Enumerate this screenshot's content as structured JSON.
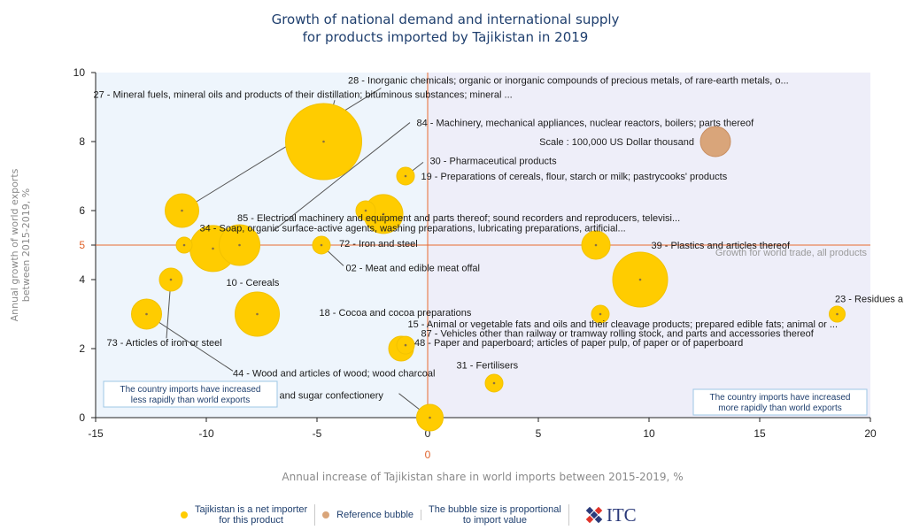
{
  "chart_data": {
    "type": "scatter",
    "title": [
      "Growth of national demand and international supply",
      "for products imported by Tajikistan in 2019"
    ],
    "xlabel": "Annual increase of Tajikistan share in world imports between 2015-2019, %",
    "ylabel": "Annual growth of world exports between 2015-2019, %",
    "xlim": [
      -15,
      20
    ],
    "ylim": [
      0,
      10
    ],
    "xticks": [
      "-15",
      "-10",
      "-5",
      "0",
      "5",
      "10",
      "15",
      "20"
    ],
    "yticks": [
      "0",
      "2",
      "4",
      "5",
      "6",
      "8",
      "10"
    ],
    "x_reference": 0,
    "x_reference_label": "0",
    "y_reference": 5,
    "y_reference_label": "5",
    "world_growth_label": "Growth for world trade, all products",
    "scale_label": "Scale : 100,000 US Dollar thousand",
    "reference_bubble": {
      "x": 13,
      "y": 8,
      "r": 17,
      "color": "#d9a57a"
    },
    "net_importer_color": "#ffcc00",
    "quadrant_left_text": [
      "The country imports have increased",
      "less rapidly than world exports"
    ],
    "quadrant_right_text": [
      "The country imports have increased",
      "more rapidly than world exports"
    ],
    "bubbles": [
      {
        "x": -4.7,
        "y": 8.0,
        "r": 43
      },
      {
        "x": -11.1,
        "y": 6.0,
        "r": 19
      },
      {
        "x": -1.0,
        "y": 7.0,
        "r": 10
      },
      {
        "x": -2.8,
        "y": 6.0,
        "r": 11
      },
      {
        "x": -2.0,
        "y": 5.9,
        "r": 22
      },
      {
        "x": -11.0,
        "y": 5.0,
        "r": 9
      },
      {
        "x": -9.7,
        "y": 4.9,
        "r": 26
      },
      {
        "x": -8.5,
        "y": 5.0,
        "r": 23
      },
      {
        "x": -4.8,
        "y": 5.0,
        "r": 10
      },
      {
        "x": 7.6,
        "y": 5.0,
        "r": 16
      },
      {
        "x": -11.6,
        "y": 4.0,
        "r": 13
      },
      {
        "x": 9.6,
        "y": 4.0,
        "r": 31
      },
      {
        "x": -7.7,
        "y": 3.0,
        "r": 25
      },
      {
        "x": -12.7,
        "y": 3.0,
        "r": 17
      },
      {
        "x": 7.8,
        "y": 3.0,
        "r": 10
      },
      {
        "x": 18.5,
        "y": 3.0,
        "r": 9
      },
      {
        "x": -1.2,
        "y": 2.0,
        "r": 14
      },
      {
        "x": -1.0,
        "y": 2.1,
        "r": 10
      },
      {
        "x": 3.0,
        "y": 1.0,
        "r": 10
      },
      {
        "x": 0.1,
        "y": 0.0,
        "r": 15
      }
    ],
    "annotations": [
      {
        "text": "28 - Inorganic chemicals; organic or inorganic compounds of precious metals, of rare-earth metals, o...",
        "lx": -3.6,
        "ly": 9.78,
        "leader": [
          [
            -11.1,
            6.0
          ],
          [
            -2.1,
            9.55
          ]
        ]
      },
      {
        "text": "27 - Mineral fuels, mineral oils and products of their distillation; bituminous substances; mineral ...",
        "lx": -15.1,
        "ly": 9.37,
        "leader": [
          [
            -4.7,
            8.0
          ],
          [
            -4.2,
            9.2
          ]
        ]
      },
      {
        "text": "84 - Machinery, mechanical appliances, nuclear reactors, boilers; parts thereof",
        "lx": -0.5,
        "ly": 8.55,
        "leader": [
          [
            -7.0,
            5.4
          ],
          [
            -0.8,
            8.55
          ]
        ]
      },
      {
        "text": "30 - Pharmaceutical products",
        "lx": 0.1,
        "ly": 7.45,
        "leader": [
          [
            -1.0,
            7.0
          ],
          [
            -0.2,
            7.4
          ]
        ]
      },
      {
        "text": "19 - Preparations of cereals, flour, starch or milk; pastrycooks' products",
        "lx": -0.3,
        "ly": 7.0
      },
      {
        "text": "85 - Electrical machinery and equipment and parts thereof; sound recorders and reproducers, televisi...",
        "lx": -8.6,
        "ly": 5.8
      },
      {
        "text": "34 - Soap, organic surface-active agents, washing preparations, lubricating preparations, artificial...",
        "lx": -10.3,
        "ly": 5.5
      },
      {
        "text": "72 - Iron and steel",
        "lx": -4.0,
        "ly": 5.05
      },
      {
        "text": "02 - Meat and edible meat offal",
        "lx": -3.7,
        "ly": 4.35,
        "leader": [
          [
            -4.8,
            5.0
          ],
          [
            -3.8,
            4.4
          ]
        ]
      },
      {
        "text": "39 - Plastics and articles thereof",
        "lx": 10.1,
        "ly": 5.0
      },
      {
        "text": "10 - Cereals",
        "lx": -9.1,
        "ly": 3.92
      },
      {
        "text": "23 - Residues a",
        "lx": 18.4,
        "ly": 3.45
      },
      {
        "text": "18 - Cocoa and cocoa preparations",
        "lx": -4.9,
        "ly": 3.05
      },
      {
        "text": "15 - Animal or vegetable fats and oils and their cleavage products; prepared edible fats; animal or ...",
        "lx": -0.9,
        "ly": 2.72
      },
      {
        "text": "87 - Vehicles other than railway or tramway rolling stock, and parts and accessories thereof",
        "lx": -0.3,
        "ly": 2.45
      },
      {
        "text": "73 - Articles of iron or steel",
        "lx": -14.5,
        "ly": 2.18,
        "leader": [
          [
            -11.6,
            4.0
          ],
          [
            -11.8,
            2.3
          ]
        ]
      },
      {
        "text": "48 - Paper and paperboard; articles of paper pulp, of paper or of paperboard",
        "lx": -0.6,
        "ly": 2.18
      },
      {
        "text": "44 - Wood and articles of wood; wood charcoal",
        "lx": -8.8,
        "ly": 1.3,
        "leader": [
          [
            -12.7,
            3.0
          ],
          [
            -8.8,
            1.35
          ]
        ]
      },
      {
        "text": "31 - Fertilisers",
        "lx": 1.3,
        "ly": 1.53
      },
      {
        "text": "and sugar confectionery",
        "lx": -6.7,
        "ly": 0.65,
        "leader": [
          [
            0.1,
            0.0
          ],
          [
            -1.3,
            0.7
          ]
        ]
      }
    ]
  },
  "legend": {
    "items": [
      {
        "label": [
          "Tajikistan is a net importer",
          "for this product"
        ],
        "color": "#ffcc00"
      },
      {
        "label": [
          "Reference bubble"
        ],
        "color": "#d9a57a"
      },
      {
        "label": [
          "The bubble size is proportional",
          "to import value"
        ],
        "color": ""
      }
    ],
    "brand": "ITC"
  }
}
